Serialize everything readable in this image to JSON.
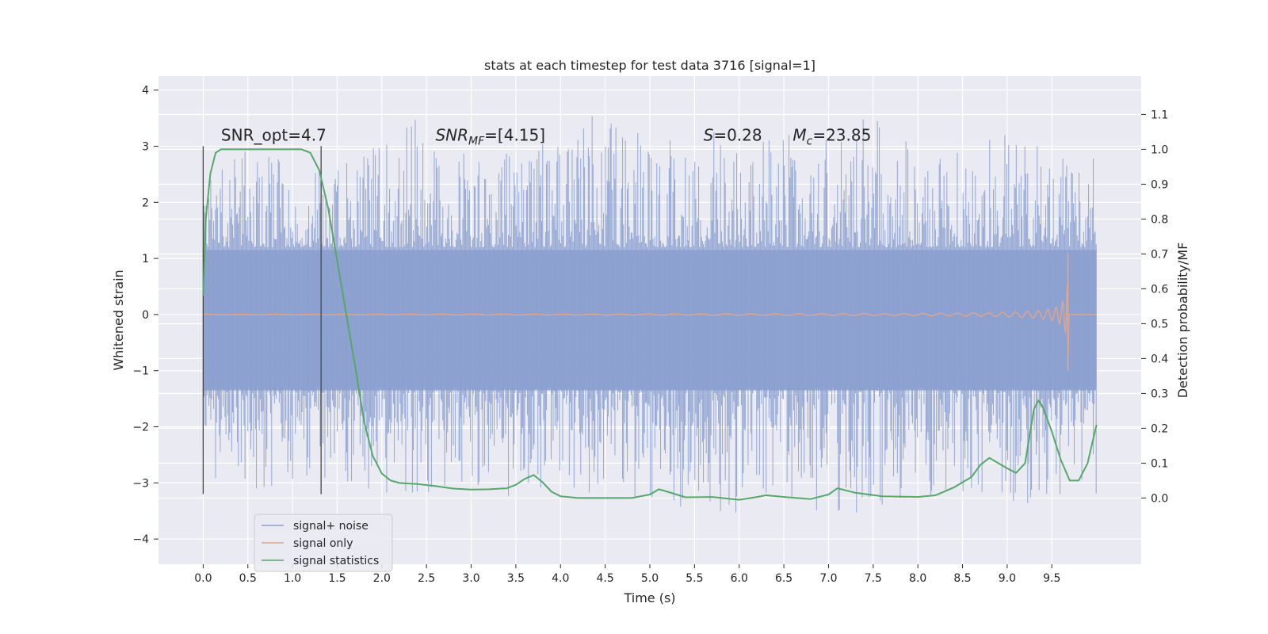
{
  "chart_data": {
    "type": "line",
    "title": "stats at each timestep for test data 3716 [signal=1]",
    "xlabel": "Time (s)",
    "ylabel": "Whitened strain",
    "y2label": "Detection probability/MF",
    "xlim": [
      -0.5,
      10.5
    ],
    "ylim": [
      -4.45,
      4.25
    ],
    "y2lim": [
      -0.19,
      1.21
    ],
    "grid": true,
    "legend_position": "lower-left",
    "x_ticks": [
      0.0,
      0.5,
      1.0,
      1.5,
      2.0,
      2.5,
      3.0,
      3.5,
      4.0,
      4.5,
      5.0,
      5.5,
      6.0,
      6.5,
      7.0,
      7.5,
      8.0,
      8.5,
      9.0,
      9.5
    ],
    "x_tick_labels": [
      "0.0",
      "0.5",
      "1.0",
      "1.5",
      "2.0",
      "2.5",
      "3.0",
      "3.5",
      "4.0",
      "4.5",
      "5.0",
      "5.5",
      "6.0",
      "6.5",
      "7.0",
      "7.5",
      "8.0",
      "8.5",
      "9.0",
      "9.5"
    ],
    "y_ticks": [
      4,
      3,
      2,
      1,
      0,
      -1,
      -2,
      -3,
      -4
    ],
    "y_tick_labels": [
      "4",
      "3",
      "2",
      "1",
      "0",
      "−1",
      "−2",
      "−3",
      "−4"
    ],
    "y2_ticks": [
      1.1,
      1.0,
      0.9,
      0.8,
      0.7,
      0.6,
      0.5,
      0.4,
      0.3,
      0.2,
      0.1,
      0.0
    ],
    "y2_tick_labels": [
      "1.1",
      "1.0",
      "0.9",
      "0.8",
      "0.7",
      "0.6",
      "0.5",
      "0.4",
      "0.3",
      "0.2",
      "0.1",
      "0.0"
    ],
    "vlines": [
      {
        "x": 0.0,
        "y": [
          -3.2,
          3.0
        ]
      },
      {
        "x": 1.32,
        "y": [
          -3.2,
          3.0
        ]
      }
    ],
    "annotations": [
      {
        "text": "SNR_opt=4.7",
        "x": 0.2,
        "y": 3.1
      },
      {
        "text": "SNR",
        "sub": "MF",
        "tail": "=[4.15]",
        "italic": true,
        "x": 2.6,
        "y": 3.1
      },
      {
        "text": "S",
        "tail": "=0.28",
        "italic": true,
        "x": 5.6,
        "y": 3.1
      },
      {
        "text": "M",
        "sub": "c",
        "tail": "=23.85",
        "italic": true,
        "x": 6.6,
        "y": 3.1
      }
    ],
    "series": [
      {
        "name": "signal+ noise",
        "axis": "left",
        "color": "#8a9fcf",
        "x_range": [
          0.0,
          10.0
        ],
        "envelope": {
          "x": [
            0.0,
            0.5,
            1.0,
            1.5,
            2.0,
            2.5,
            3.0,
            3.5,
            4.0,
            4.5,
            5.0,
            5.5,
            6.0,
            6.5,
            7.0,
            7.5,
            8.0,
            8.5,
            9.0,
            9.5,
            10.0
          ],
          "upper": [
            2.3,
            3.0,
            2.7,
            2.9,
            3.0,
            3.7,
            3.1,
            3.2,
            3.3,
            3.9,
            3.0,
            3.5,
            3.0,
            3.3,
            3.1,
            3.6,
            3.0,
            2.9,
            3.3,
            2.9,
            2.8
          ],
          "lower": [
            -3.0,
            -3.2,
            -3.1,
            -3.0,
            -3.3,
            -3.3,
            -3.0,
            -3.3,
            -3.0,
            -3.3,
            -3.5,
            -3.4,
            -3.7,
            -3.2,
            -3.6,
            -3.5,
            -3.4,
            -3.2,
            -3.5,
            -3.3,
            -3.3
          ]
        }
      },
      {
        "name": "signal only",
        "axis": "left",
        "color": "#e1a58a",
        "chirp": {
          "t_merger": 9.68,
          "peak_amplitude": 1.1,
          "min_amplitude": -1.0
        }
      },
      {
        "name": "signal statistics",
        "axis": "right",
        "color": "#55a868",
        "x": [
          0.0,
          0.03,
          0.08,
          0.14,
          0.2,
          0.3,
          0.5,
          0.8,
          1.0,
          1.1,
          1.2,
          1.3,
          1.4,
          1.5,
          1.6,
          1.7,
          1.8,
          1.9,
          2.0,
          2.1,
          2.2,
          2.4,
          2.6,
          2.8,
          3.0,
          3.2,
          3.4,
          3.5,
          3.6,
          3.7,
          3.8,
          3.9,
          4.0,
          4.2,
          4.5,
          4.8,
          5.0,
          5.1,
          5.2,
          5.4,
          5.7,
          6.0,
          6.2,
          6.3,
          6.5,
          6.8,
          7.0,
          7.1,
          7.3,
          7.6,
          8.0,
          8.2,
          8.4,
          8.6,
          8.7,
          8.8,
          9.0,
          9.1,
          9.2,
          9.3,
          9.35,
          9.4,
          9.5,
          9.6,
          9.7,
          9.8,
          9.9,
          10.0
        ],
        "y": [
          0.58,
          0.8,
          0.93,
          0.99,
          1.0,
          1.0,
          1.0,
          1.0,
          1.0,
          1.0,
          0.99,
          0.94,
          0.83,
          0.68,
          0.53,
          0.38,
          0.22,
          0.12,
          0.07,
          0.05,
          0.043,
          0.04,
          0.034,
          0.027,
          0.024,
          0.025,
          0.028,
          0.038,
          0.055,
          0.066,
          0.045,
          0.018,
          0.005,
          0.0,
          0.0,
          0.0,
          0.01,
          0.025,
          0.018,
          0.002,
          0.003,
          -0.005,
          0.003,
          0.008,
          0.003,
          -0.003,
          0.01,
          0.028,
          0.015,
          0.005,
          0.003,
          0.008,
          0.03,
          0.06,
          0.095,
          0.115,
          0.085,
          0.072,
          0.1,
          0.255,
          0.28,
          0.26,
          0.19,
          0.11,
          0.05,
          0.05,
          0.1,
          0.21
        ]
      }
    ]
  }
}
